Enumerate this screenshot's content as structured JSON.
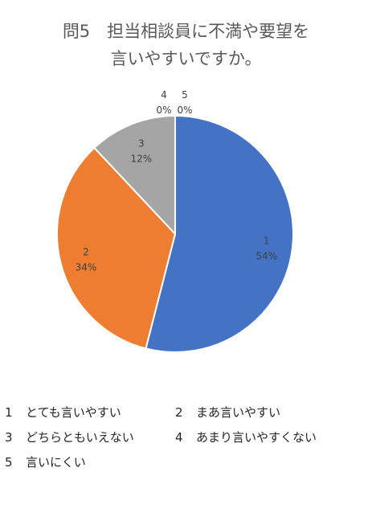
{
  "title": {
    "line1": "問5　担当相談員に不満や要望を",
    "line2": "言いやすいですか。"
  },
  "legend": [
    {
      "num": "1",
      "label": "とても言いやすい"
    },
    {
      "num": "2",
      "label": "まあ言いやすい"
    },
    {
      "num": "3",
      "label": "どちらともいえない"
    },
    {
      "num": "4",
      "label": "あまり言いやすくない"
    },
    {
      "num": "5",
      "label": "言いにくい"
    }
  ],
  "chart_data": {
    "type": "pie",
    "categories": [
      "1",
      "2",
      "3",
      "4",
      "5"
    ],
    "values": [
      54,
      34,
      12,
      0,
      0
    ],
    "labels": [
      "54%",
      "34%",
      "12%",
      "0%",
      "0%"
    ],
    "colors": [
      "#4472C4",
      "#ED7D31",
      "#A5A5A5",
      "#FFC000",
      "#5B9BD5"
    ],
    "title": "問5　担当相談員に不満や要望を言いやすいですか。",
    "legend_position": "bottom"
  }
}
